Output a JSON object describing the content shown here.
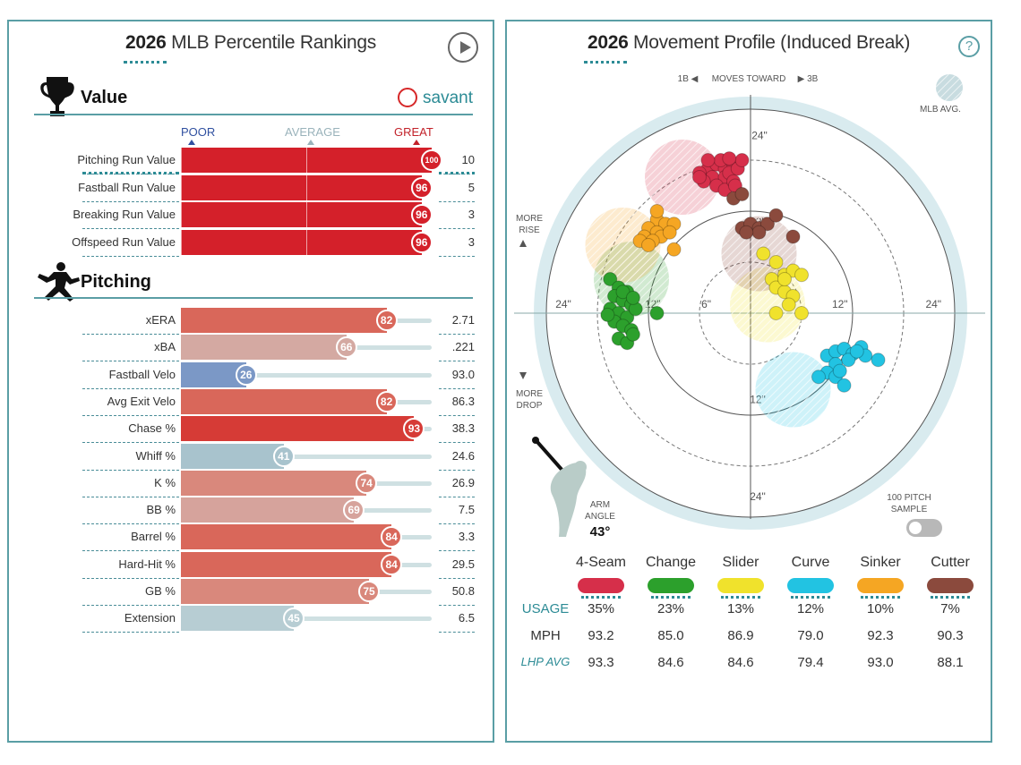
{
  "left_panel": {
    "title_year": "2026",
    "title_rest": "MLB Percentile Rankings",
    "value_section": "Value",
    "pitching_section": "Pitching",
    "savant_label": "savant",
    "scale": {
      "poor": "POOR",
      "average": "AVERAGE",
      "great": "GREAT"
    }
  },
  "right_panel": {
    "title_year": "2026",
    "title_rest": "Movement Profile (Induced Break)",
    "help_label": "?",
    "moves_toward": {
      "left": "1B ◀",
      "middle": "MOVES TOWARD",
      "right": "▶ 3B"
    },
    "mlb_avg_label": "MLB AVG.",
    "more_rise": "MORE\nRISE",
    "more_drop": "MORE\nDROP",
    "arm_angle_label": "ARM\nANGLE",
    "arm_angle_value": "43°",
    "sample_toggle_label": "100 PITCH\nSAMPLE",
    "row_labels": {
      "usage": "USAGE",
      "mph": "MPH",
      "lhp_avg": "LHP AVG"
    }
  },
  "chart_data": [
    {
      "type": "bar",
      "title": "2026 MLB Percentile Rankings",
      "section": "Value",
      "categories": [
        "Pitching Run Value",
        "Fastball Run Value",
        "Breaking Run Value",
        "Offspeed Run Value"
      ],
      "percentiles": [
        100,
        96,
        96,
        96
      ],
      "percentile_labels": [
        "100",
        "96",
        "96",
        "96"
      ],
      "values": [
        "10",
        "5",
        "3",
        "3"
      ],
      "xlim": [
        0,
        100
      ]
    },
    {
      "type": "bar",
      "section": "Pitching",
      "categories": [
        "xERA",
        "xBA",
        "Fastball Velo",
        "Avg Exit Velo",
        "Chase %",
        "Whiff %",
        "K %",
        "BB %",
        "Barrel %",
        "Hard-Hit %",
        "GB %",
        "Extension"
      ],
      "percentiles": [
        82,
        66,
        26,
        82,
        93,
        41,
        74,
        69,
        84,
        84,
        75,
        45
      ],
      "values": [
        "2.71",
        ".221",
        "93.0",
        "86.3",
        "38.3",
        "24.6",
        "26.9",
        "7.5",
        "3.3",
        "29.5",
        "50.8",
        "6.5"
      ],
      "colors": [
        "#d9675a",
        "#d4a9a2",
        "#7b98c6",
        "#d9675a",
        "#d63b36",
        "#a8c3cd",
        "#d9887c",
        "#d6a39c",
        "#d9675a",
        "#d9675a",
        "#d9887c",
        "#b7cdd3"
      ],
      "xlim": [
        0,
        100
      ]
    },
    {
      "type": "scatter",
      "title": "2026 Movement Profile (Induced Break)",
      "xlabel": "MOVES TOWARD",
      "xlim": [
        -24,
        24
      ],
      "ylim": [
        -24,
        24
      ],
      "ring_labels": [
        "6\"",
        "12\"",
        "24\""
      ],
      "series": [
        {
          "name": "4-Seam",
          "color": "#d62f4a",
          "usage": "35%",
          "mph": "93.2",
          "lhp_avg": "93.3",
          "avg": [
            -8,
            16
          ],
          "points": [
            [
              -5,
              17
            ],
            [
              -4,
              17.5
            ],
            [
              -3,
              17
            ],
            [
              -2,
              17.5
            ],
            [
              -6,
              16.5
            ],
            [
              -4.5,
              16
            ],
            [
              -3,
              16
            ],
            [
              -5.5,
              15.5
            ],
            [
              -2.5,
              16.5
            ],
            [
              -1.5,
              17
            ],
            [
              -4,
              15
            ],
            [
              -3,
              14.5
            ],
            [
              -2,
              15.5
            ],
            [
              -6,
              16
            ],
            [
              -1,
              18
            ],
            [
              -3.5,
              18
            ],
            [
              -5,
              18
            ],
            [
              -2.5,
              18.2
            ],
            [
              -1.8,
              15
            ]
          ]
        },
        {
          "name": "Change",
          "color": "#2ca02c",
          "usage": "23%",
          "mph": "85.0",
          "lhp_avg": "84.6",
          "avg": [
            -14,
            4
          ],
          "points": [
            [
              -16.5,
              4
            ],
            [
              -15.5,
              3
            ],
            [
              -14.5,
              2.5
            ],
            [
              -16,
              2
            ],
            [
              -15,
              1.5
            ],
            [
              -14,
              1
            ],
            [
              -16.5,
              0.5
            ],
            [
              -15.5,
              0
            ],
            [
              -14.5,
              -0.5
            ],
            [
              -13.5,
              0.5
            ],
            [
              -16,
              -1
            ],
            [
              -15,
              -1.5
            ],
            [
              -14,
              -2
            ],
            [
              -15.5,
              -3
            ],
            [
              -14.5,
              -3.5
            ],
            [
              -13.8,
              -2.5
            ],
            [
              -16.8,
              -0.2
            ],
            [
              -11,
              0
            ],
            [
              -15,
              2.5
            ],
            [
              -13.8,
              1.8
            ]
          ]
        },
        {
          "name": "Slider",
          "color": "#f0e22c",
          "usage": "13%",
          "mph": "86.9",
          "lhp_avg": "84.6",
          "avg": [
            2,
            1
          ],
          "points": [
            [
              1.5,
              7
            ],
            [
              3,
              6
            ],
            [
              4,
              4.5
            ],
            [
              2.5,
              4
            ],
            [
              5,
              5
            ],
            [
              6,
              4.5
            ],
            [
              3,
              3
            ],
            [
              4,
              2.5
            ],
            [
              5,
              2
            ],
            [
              4.5,
              1
            ],
            [
              6,
              0
            ],
            [
              3,
              0
            ],
            [
              4,
              4
            ]
          ]
        },
        {
          "name": "Curve",
          "color": "#22c3e2",
          "usage": "12%",
          "mph": "79.0",
          "lhp_avg": "79.4",
          "avg": [
            5,
            -9
          ],
          "points": [
            [
              9,
              -5
            ],
            [
              10,
              -4.5
            ],
            [
              11,
              -4.2
            ],
            [
              12,
              -4.8
            ],
            [
              13,
              -4
            ],
            [
              11.5,
              -5.5
            ],
            [
              10,
              -6
            ],
            [
              13.5,
              -5
            ],
            [
              15,
              -5.5
            ],
            [
              9,
              -7
            ],
            [
              10,
              -7.5
            ],
            [
              11,
              -8.5
            ],
            [
              8,
              -7.5
            ],
            [
              10.5,
              -6.8
            ],
            [
              12.5,
              -4.5
            ]
          ]
        },
        {
          "name": "Sinker",
          "color": "#f5a623",
          "usage": "10%",
          "mph": "92.3",
          "lhp_avg": "93.0",
          "avg": [
            -15,
            8
          ],
          "points": [
            [
              -11,
              11
            ],
            [
              -10,
              10.5
            ],
            [
              -9,
              10.5
            ],
            [
              -12,
              10
            ],
            [
              -11,
              9.5
            ],
            [
              -12.5,
              9
            ],
            [
              -10.5,
              9
            ],
            [
              -9.5,
              9.5
            ],
            [
              -13,
              8.5
            ],
            [
              -11.5,
              8.5
            ],
            [
              -12,
              8
            ],
            [
              -9,
              7.5
            ],
            [
              -11,
              12
            ]
          ]
        },
        {
          "name": "Cutter",
          "color": "#8b4a3d",
          "usage": "7%",
          "mph": "90.3",
          "lhp_avg": "88.1",
          "avg": [
            1,
            7
          ],
          "points": [
            [
              -1,
              10
            ],
            [
              0,
              10.5
            ],
            [
              1,
              10
            ],
            [
              2,
              10.5
            ],
            [
              1,
              9.5
            ],
            [
              -0.5,
              9.5
            ],
            [
              3,
              11.5
            ],
            [
              5,
              9
            ],
            [
              -2,
              13.5
            ],
            [
              -1,
              14
            ]
          ]
        }
      ]
    }
  ]
}
